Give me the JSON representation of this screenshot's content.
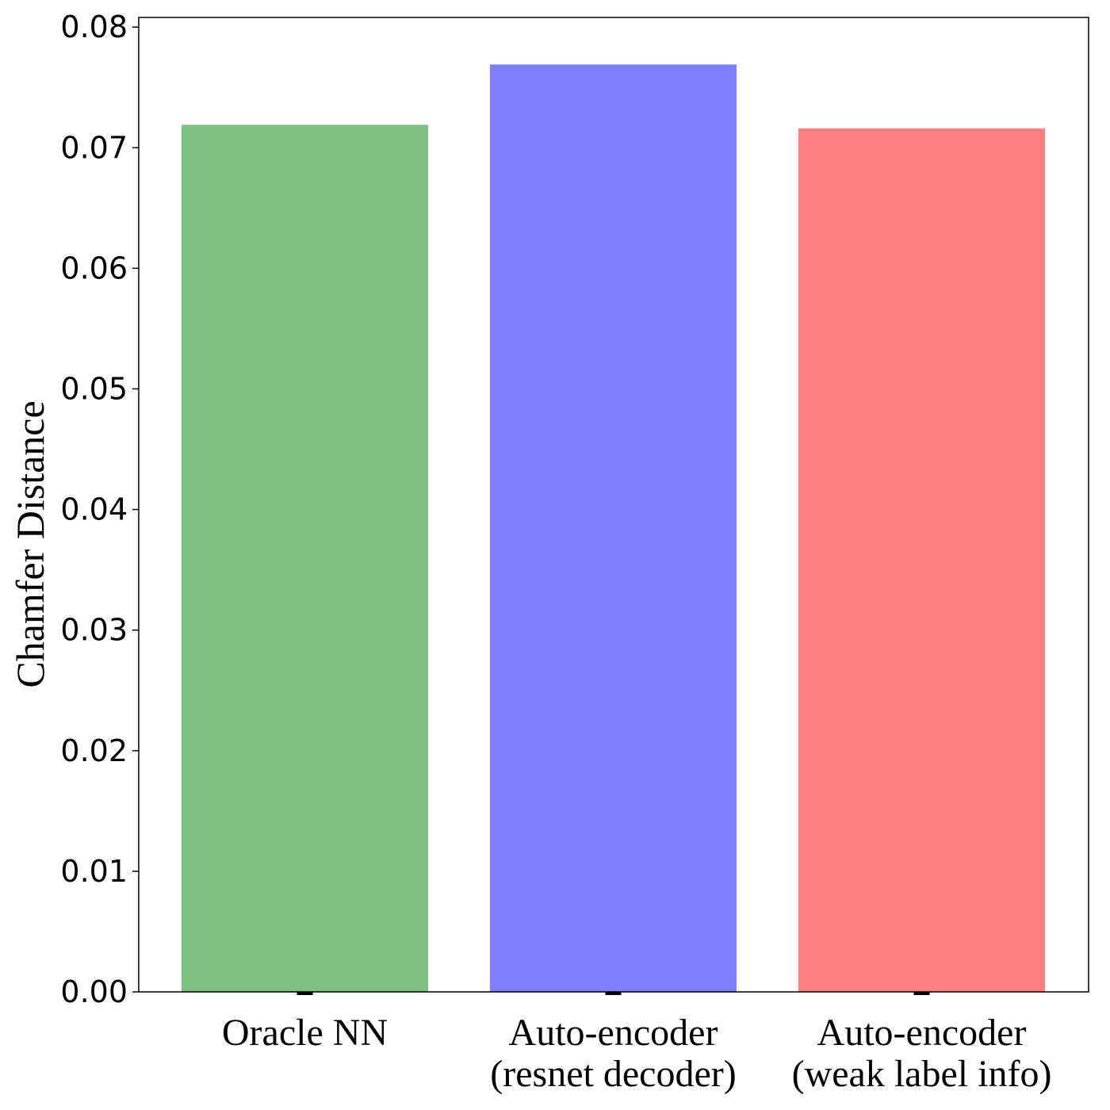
{
  "chart_data": {
    "type": "bar",
    "title": "",
    "xlabel": "",
    "ylabel": "Chamfer Distance",
    "ylim": [
      0,
      0.0808
    ],
    "yticks": [
      "0.00",
      "0.01",
      "0.02",
      "0.03",
      "0.04",
      "0.05",
      "0.06",
      "0.07",
      "0.08"
    ],
    "grid": false,
    "legend": "none",
    "bars": [
      {
        "label_lines": [
          "Oracle NN"
        ],
        "value": 0.0719,
        "color": "#80c080"
      },
      {
        "label_lines": [
          "Auto-encoder",
          "(resnet decoder)"
        ],
        "value": 0.0769,
        "color": "#8080ff"
      },
      {
        "label_lines": [
          "Auto-encoder",
          "(weak label info)"
        ],
        "value": 0.0716,
        "color": "#ff8080"
      }
    ],
    "error_marker_color": "#000000"
  }
}
